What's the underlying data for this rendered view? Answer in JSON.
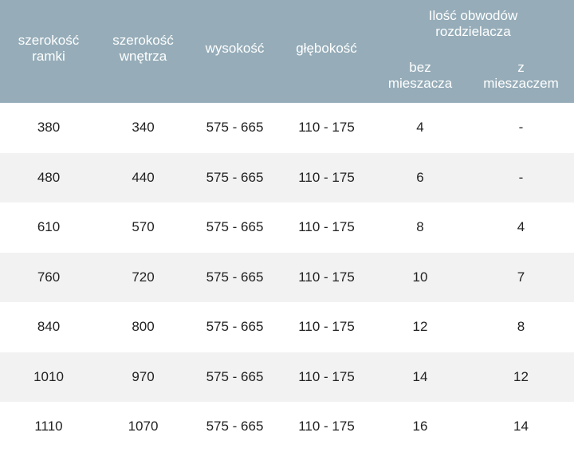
{
  "header": {
    "frame_width": [
      "szerokość",
      "ramki"
    ],
    "inner_width": [
      "szerokość",
      "wnętrza"
    ],
    "height": "wysokość",
    "depth": "głębokość",
    "circuits": [
      "Ilość obwodów",
      "rozdzielacza"
    ],
    "without_mixer": [
      "bez",
      "mieszacza"
    ],
    "with_mixer": [
      "z",
      "mieszaczem"
    ]
  },
  "rows": [
    [
      "380",
      "340",
      "575 - 665",
      "110 - 175",
      "4",
      "-"
    ],
    [
      "480",
      "440",
      "575 - 665",
      "110 - 175",
      "6",
      "-"
    ],
    [
      "610",
      "570",
      "575 - 665",
      "110 - 175",
      "8",
      "4"
    ],
    [
      "760",
      "720",
      "575 - 665",
      "110 - 175",
      "10",
      "7"
    ],
    [
      "840",
      "800",
      "575 - 665",
      "110 - 175",
      "12",
      "8"
    ],
    [
      "1010",
      "970",
      "575 - 665",
      "110 - 175",
      "14",
      "12"
    ],
    [
      "1110",
      "1070",
      "575 - 665",
      "110 - 175",
      "16",
      "14"
    ]
  ],
  "colors": {
    "header_bg": "#96adb9",
    "stripe": "#f2f2f2"
  }
}
